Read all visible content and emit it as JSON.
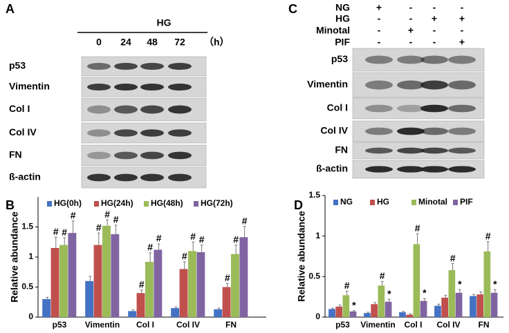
{
  "panel_a": {
    "letter": "A",
    "treatment": "HG",
    "times": [
      "0",
      "24",
      "48",
      "72"
    ],
    "unit": "（h）",
    "rows": [
      "p53",
      "Vimentin",
      "Col I",
      "Col IV",
      "FN",
      "ß-actin"
    ]
  },
  "panel_c": {
    "letter": "C",
    "treatments": [
      {
        "name": "NG",
        "marks": [
          "+",
          "-",
          "-",
          "-"
        ]
      },
      {
        "name": "HG",
        "marks": [
          "-",
          "-",
          "+",
          "+"
        ]
      },
      {
        "name": "Minotal",
        "marks": [
          "-",
          "+",
          "-",
          "-"
        ]
      },
      {
        "name": "PIF",
        "marks": [
          "-",
          "-",
          "-",
          "+"
        ]
      }
    ],
    "rows": [
      "p53",
      "Vimentin",
      "Col I",
      "Col IV",
      "FN",
      "ß-actin"
    ]
  },
  "chart_data": [
    {
      "type": "bar",
      "letter": "B",
      "y_label": "Relative abundance",
      "categories": [
        "p53",
        "Vimentin",
        "Col I",
        "Col IV",
        "FN"
      ],
      "ylim": [
        0,
        2
      ],
      "yticks": [
        0,
        0.5,
        1,
        1.5
      ],
      "series": [
        {
          "name": "HG(0h)",
          "color": "#4472c4",
          "values": [
            0.3,
            0.6,
            0.1,
            0.15,
            0.13
          ],
          "errors": [
            0.03,
            0.08,
            0.02,
            0.02,
            0.02
          ],
          "annotations": [
            null,
            null,
            null,
            null,
            null
          ]
        },
        {
          "name": "HG(24h)",
          "color": "#c0504d",
          "values": [
            1.15,
            1.2,
            0.4,
            0.8,
            0.5
          ],
          "errors": [
            0.18,
            0.2,
            0.05,
            0.12,
            0.06
          ],
          "annotations": [
            "#",
            "#",
            "#",
            "#",
            "#"
          ]
        },
        {
          "name": "HG(48h)",
          "color": "#9bbb59",
          "values": [
            1.2,
            1.52,
            0.92,
            1.1,
            1.05
          ],
          "errors": [
            0.12,
            0.1,
            0.15,
            0.15,
            0.15
          ],
          "annotations": [
            "#",
            "#",
            "#",
            "#",
            "#"
          ]
        },
        {
          "name": "HG(72h)",
          "color": "#8064a2",
          "values": [
            1.4,
            1.38,
            1.12,
            1.08,
            1.33
          ],
          "errors": [
            0.2,
            0.15,
            0.1,
            0.12,
            0.18
          ],
          "annotations": [
            "#",
            "#",
            "#",
            "#",
            "#"
          ]
        }
      ]
    },
    {
      "type": "bar",
      "letter": "D",
      "y_label": "Relative abundance",
      "categories": [
        "p53",
        "Vimentin",
        "Col I",
        "Col IV",
        "FN"
      ],
      "ylim": [
        0,
        1.5
      ],
      "yticks": [
        0,
        0.5,
        1,
        1.5
      ],
      "series": [
        {
          "name": "NG",
          "color": "#4472c4",
          "values": [
            0.1,
            0.05,
            0.06,
            0.14,
            0.26
          ],
          "errors": [
            0.01,
            0.01,
            0.01,
            0.02,
            0.02
          ],
          "annotations": [
            null,
            null,
            null,
            null,
            null
          ]
        },
        {
          "name": "HG",
          "color": "#c0504d",
          "values": [
            0.13,
            0.16,
            0.03,
            0.24,
            0.28
          ],
          "errors": [
            0.02,
            0.02,
            0.01,
            0.03,
            0.03
          ],
          "annotations": [
            null,
            null,
            null,
            null,
            null
          ]
        },
        {
          "name": "Minotal",
          "color": "#9bbb59",
          "values": [
            0.27,
            0.39,
            0.9,
            0.58,
            0.81
          ],
          "errors": [
            0.05,
            0.05,
            0.13,
            0.08,
            0.12
          ],
          "annotations": [
            "#",
            "#",
            "#",
            "#",
            "#"
          ]
        },
        {
          "name": "PIF",
          "color": "#8064a2",
          "values": [
            0.07,
            0.19,
            0.2,
            0.3,
            0.3
          ],
          "errors": [
            0.01,
            0.03,
            0.03,
            0.04,
            0.04
          ],
          "annotations": [
            "*",
            "*",
            "*",
            "*",
            "*"
          ]
        }
      ]
    }
  ]
}
